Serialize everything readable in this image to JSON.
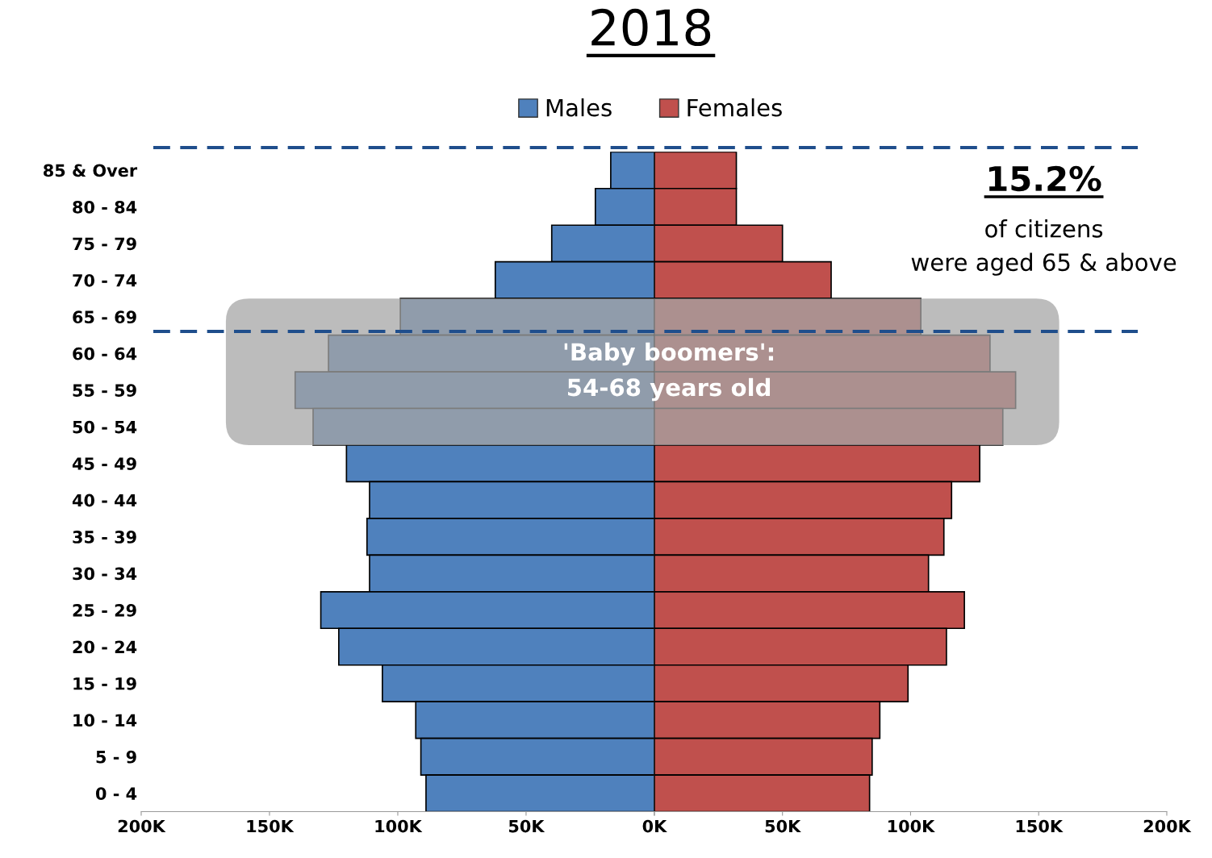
{
  "chart_data": [
    {
      "type": "bar",
      "orientation": "horizontal",
      "title": "2018",
      "categories": [
        "85 & Over",
        "80 - 84",
        "75 - 79",
        "70 - 74",
        "65 - 69",
        "60 - 64",
        "55 - 59",
        "50 - 54",
        "45 - 49",
        "40 - 44",
        "35 - 39",
        "30 - 34",
        "25 - 29",
        "20 - 24",
        "15 - 19",
        "10 - 14",
        "5 - 9",
        "0 - 4"
      ],
      "series": [
        {
          "name": "Males",
          "color": "#4f81bd",
          "values": [
            17000,
            23000,
            40000,
            62000,
            99000,
            127000,
            140000,
            133000,
            120000,
            111000,
            112000,
            111000,
            130000,
            123000,
            106000,
            93000,
            91000,
            89000
          ]
        }
      ],
      "xlim": [
        200000,
        0
      ],
      "xticks": [
        {
          "value": 200000,
          "label": "200K"
        },
        {
          "value": 150000,
          "label": "150K"
        },
        {
          "value": 100000,
          "label": "100K"
        },
        {
          "value": 50000,
          "label": "50K"
        },
        {
          "value": 0,
          "label": "0K"
        }
      ],
      "bands": [
        {
          "axis": "y",
          "from": "50 - 54",
          "to": "65 - 69",
          "label": "'Baby boomers':\n54-68 years old",
          "color": "#a6a6a6"
        }
      ],
      "legend": "top",
      "grid": false
    },
    {
      "type": "bar",
      "orientation": "horizontal",
      "categories": [
        "85 & Over",
        "80 - 84",
        "75 - 79",
        "70 - 74",
        "65 - 69",
        "60 - 64",
        "55 - 59",
        "50 - 54",
        "45 - 49",
        "40 - 44",
        "35 - 39",
        "30 - 34",
        "25 - 29",
        "20 - 24",
        "15 - 19",
        "10 - 14",
        "5 - 9",
        "0 - 4"
      ],
      "series": [
        {
          "name": "Females",
          "color": "#c0504d",
          "values": [
            32000,
            32000,
            50000,
            69000,
            104000,
            131000,
            141000,
            136000,
            127000,
            116000,
            113000,
            107000,
            121000,
            114000,
            99000,
            88000,
            85000,
            84000
          ]
        }
      ],
      "xlim": [
        0,
        200000
      ],
      "xticks": [
        {
          "value": 0,
          "label": null
        },
        {
          "value": 50000,
          "label": "50K"
        },
        {
          "value": 100000,
          "label": "100K"
        },
        {
          "value": 150000,
          "label": "150K"
        },
        {
          "value": 200000,
          "label": "200K"
        }
      ],
      "bands": [
        {
          "axis": "y",
          "from": "50 - 54",
          "to": "65 - 69",
          "label": null,
          "color": "#a6a6a6"
        }
      ],
      "annotations": [
        "15.2%",
        "of citizens\nwere aged 65 & above"
      ],
      "tick_labels": "x",
      "legend": "top",
      "grid": false
    }
  ]
}
